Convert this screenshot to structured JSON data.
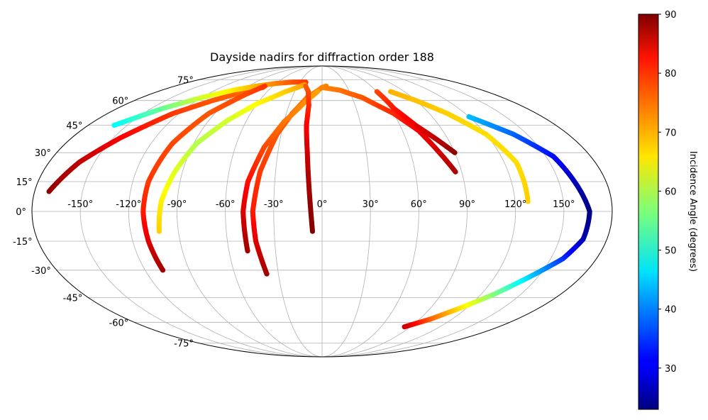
{
  "chart_data": {
    "type": "scatter",
    "projection": "mollweide",
    "title": "Dayside nadirs for diffraction order 188",
    "grid": true,
    "xlim": [
      -180,
      180
    ],
    "ylim": [
      -90,
      90
    ],
    "lon_tick_labels": [
      "-150°",
      "-120°",
      "-90°",
      "-60°",
      "-30°",
      "0°",
      "30°",
      "60°",
      "90°",
      "120°",
      "150°"
    ],
    "lon_tick_values": [
      -150,
      -120,
      -90,
      -60,
      -30,
      0,
      30,
      60,
      90,
      120,
      150
    ],
    "lat_tick_labels": [
      "-75°",
      "-60°",
      "-45°",
      "-30°",
      "-15°",
      "0°",
      "15°",
      "30°",
      "45°",
      "60°",
      "75°"
    ],
    "lat_tick_values": [
      -75,
      -60,
      -45,
      -30,
      -15,
      0,
      15,
      30,
      45,
      60,
      75
    ],
    "colorbar": {
      "label": "Incidence Angle (degrees)",
      "colormap": "jet",
      "range": [
        23,
        90
      ],
      "ticks": [
        30,
        40,
        50,
        60,
        70,
        80,
        90
      ],
      "tick_labels": [
        "30",
        "40",
        "50",
        "60",
        "70",
        "80",
        "90"
      ]
    },
    "tracks": [
      {
        "points": [
          [
            -171,
            10,
            89
          ],
          [
            -160,
            25,
            86
          ],
          [
            -145,
            38,
            82
          ],
          [
            -125,
            52,
            78
          ],
          [
            -105,
            60,
            76
          ],
          [
            -85,
            66,
            75
          ],
          [
            -70,
            69,
            76
          ]
        ]
      },
      {
        "points": [
          [
            -160,
            45,
            48
          ],
          [
            -140,
            55,
            55
          ],
          [
            -120,
            62,
            62
          ],
          [
            -100,
            67,
            66
          ],
          [
            -80,
            70,
            70
          ],
          [
            -60,
            72,
            73
          ],
          [
            -40,
            73,
            76
          ],
          [
            -22,
            73,
            78
          ]
        ]
      },
      {
        "points": [
          [
            -102,
            -10,
            68
          ],
          [
            -100,
            5,
            66
          ],
          [
            -95,
            20,
            63
          ],
          [
            -88,
            35,
            60
          ],
          [
            -75,
            48,
            62
          ],
          [
            -60,
            58,
            65
          ],
          [
            -40,
            66,
            68
          ],
          [
            -22,
            71,
            71
          ]
        ]
      },
      {
        "points": [
          [
            -108,
            -30,
            88
          ],
          [
            -110,
            -15,
            84
          ],
          [
            -111,
            0,
            80
          ],
          [
            -110,
            15,
            78
          ],
          [
            -105,
            35,
            77
          ],
          [
            -95,
            52,
            76
          ],
          [
            -80,
            64,
            77
          ],
          [
            -70,
            70,
            78
          ]
        ]
      },
      {
        "points": [
          [
            -38,
            -32,
            88
          ],
          [
            -42,
            -15,
            84
          ],
          [
            -43,
            0,
            80
          ],
          [
            -40,
            20,
            78
          ],
          [
            -33,
            40,
            76
          ],
          [
            -25,
            52,
            75
          ],
          [
            -15,
            62,
            74
          ],
          [
            0,
            69,
            73
          ],
          [
            5,
            70,
            73
          ]
        ]
      },
      {
        "points": [
          [
            -48,
            -20,
            88
          ],
          [
            -49,
            0,
            84
          ],
          [
            -47,
            15,
            81
          ],
          [
            -40,
            33,
            77
          ],
          [
            -30,
            47,
            74
          ],
          [
            -15,
            60,
            72
          ],
          [
            -5,
            66,
            71
          ]
        ]
      },
      {
        "points": [
          [
            -6,
            -10,
            90
          ],
          [
            -8,
            10,
            88
          ],
          [
            -10,
            30,
            85
          ],
          [
            -12,
            45,
            82
          ],
          [
            -12,
            57,
            79
          ],
          [
            -15,
            66,
            77
          ],
          [
            -20,
            70,
            76
          ]
        ]
      },
      {
        "points": [
          [
            0,
            69,
            73
          ],
          [
            20,
            67,
            74
          ],
          [
            40,
            62,
            76
          ],
          [
            60,
            52,
            79
          ],
          [
            72,
            42,
            82
          ],
          [
            86,
            20,
            87
          ]
        ]
      },
      {
        "points": [
          [
            60,
            66,
            77
          ],
          [
            63,
            55,
            80
          ],
          [
            72,
            45,
            83
          ],
          [
            82,
            37,
            86
          ],
          [
            90,
            30,
            89
          ]
        ]
      },
      {
        "points": [
          [
            75,
            66,
            70
          ],
          [
            90,
            60,
            69
          ],
          [
            105,
            52,
            68
          ],
          [
            120,
            40,
            67
          ],
          [
            128,
            25,
            67
          ],
          [
            128,
            5,
            68
          ]
        ]
      },
      {
        "points": [
          [
            120,
            50,
            44
          ],
          [
            140,
            40,
            38
          ],
          [
            155,
            28,
            32
          ],
          [
            160,
            15,
            27
          ],
          [
            166,
            0,
            23
          ],
          [
            165,
            -14,
            26
          ],
          [
            158,
            -24,
            34
          ],
          [
            145,
            -33,
            44
          ],
          [
            130,
            -43,
            56
          ],
          [
            115,
            -51,
            66
          ],
          [
            100,
            -58,
            75
          ],
          [
            84,
            -63,
            85
          ]
        ]
      }
    ]
  }
}
